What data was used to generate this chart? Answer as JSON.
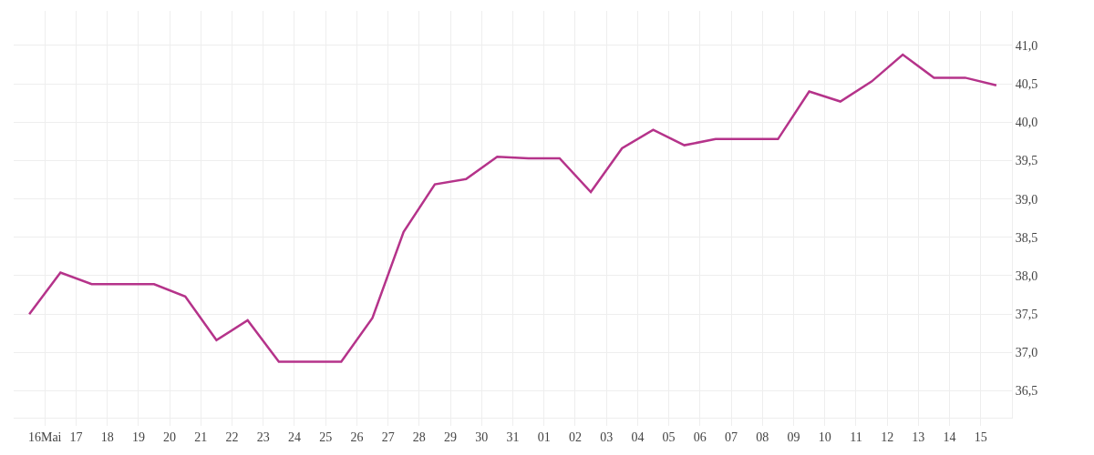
{
  "chart_data": {
    "type": "line",
    "x": [
      "--05-15T12:00",
      "--05-16T12:00",
      "--05-17T12:00",
      "--05-18T12:00",
      "--05-19T12:00",
      "--05-20T12:00",
      "--05-21T12:00",
      "--05-22T12:00",
      "--05-23T12:00",
      "--05-24T12:00",
      "--05-25T12:00",
      "--05-26T12:00",
      "--05-27T12:00",
      "--05-28T12:00",
      "--05-29T12:00",
      "--05-30T12:00",
      "--05-31T12:00",
      "--06-01T12:00",
      "--06-02T12:00",
      "--06-03T12:00",
      "--06-04T12:00",
      "--06-05T12:00",
      "--06-06T12:00",
      "--06-07T12:00",
      "--06-08T12:00",
      "--06-09T12:00",
      "--06-10T12:00",
      "--06-11T12:00",
      "--06-12T12:00",
      "--06-13T12:00",
      "--06-14T12:00",
      "--06-15T12:00"
    ],
    "series": [
      {
        "color": "#b5338a",
        "values": [
          37.5,
          38.04,
          37.89,
          37.89,
          37.89,
          37.73,
          37.16,
          37.42,
          36.88,
          36.88,
          36.88,
          37.45,
          38.57,
          39.19,
          39.26,
          39.55,
          39.53,
          39.53,
          39.09,
          39.66,
          39.9,
          39.7,
          39.78,
          39.78,
          39.78,
          40.4,
          40.27,
          40.53,
          40.88,
          40.58,
          40.58,
          40.48
        ]
      }
    ],
    "xlim": [
      "--05-15",
      "--06-16"
    ],
    "xticks": [
      {
        "value": "--05-16",
        "label": "16Mai"
      },
      {
        "value": "--05-17",
        "label": "17"
      },
      {
        "value": "--05-18",
        "label": "18"
      },
      {
        "value": "--05-19",
        "label": "19"
      },
      {
        "value": "--05-20",
        "label": "20"
      },
      {
        "value": "--05-21",
        "label": "21"
      },
      {
        "value": "--05-22",
        "label": "22"
      },
      {
        "value": "--05-23",
        "label": "23"
      },
      {
        "value": "--05-24",
        "label": "24"
      },
      {
        "value": "--05-25",
        "label": "25"
      },
      {
        "value": "--05-26",
        "label": "26"
      },
      {
        "value": "--05-27",
        "label": "27"
      },
      {
        "value": "--05-28",
        "label": "28"
      },
      {
        "value": "--05-29",
        "label": "29"
      },
      {
        "value": "--05-30",
        "label": "30"
      },
      {
        "value": "--05-31",
        "label": "31"
      },
      {
        "value": "--06-01",
        "label": "01"
      },
      {
        "value": "--06-02",
        "label": "02"
      },
      {
        "value": "--06-03",
        "label": "03"
      },
      {
        "value": "--06-04",
        "label": "04"
      },
      {
        "value": "--06-05",
        "label": "05"
      },
      {
        "value": "--06-06",
        "label": "06"
      },
      {
        "value": "--06-07",
        "label": "07"
      },
      {
        "value": "--06-08",
        "label": "08"
      },
      {
        "value": "--06-09",
        "label": "09"
      },
      {
        "value": "--06-10",
        "label": "10"
      },
      {
        "value": "--06-11",
        "label": "11"
      },
      {
        "value": "--06-12",
        "label": "12"
      },
      {
        "value": "--06-13",
        "label": "13"
      },
      {
        "value": "--06-14",
        "label": "14"
      },
      {
        "value": "--06-15",
        "label": "15"
      }
    ],
    "ylim": [
      36.15,
      41.45
    ],
    "yticks": [
      {
        "value": 36.5,
        "label": "36,5"
      },
      {
        "value": 37,
        "label": "37,0"
      },
      {
        "value": 37.5,
        "label": "37,5"
      },
      {
        "value": 38,
        "label": "38,0"
      },
      {
        "value": 38.5,
        "label": "38,5"
      },
      {
        "value": 39,
        "label": "39,0"
      },
      {
        "value": 39.5,
        "label": "39,5"
      },
      {
        "value": 40,
        "label": "40,0"
      },
      {
        "value": 40.5,
        "label": "40,5"
      },
      {
        "value": 41,
        "label": "41,0"
      }
    ],
    "grid": true,
    "line_style": "solid",
    "marker": "none"
  }
}
